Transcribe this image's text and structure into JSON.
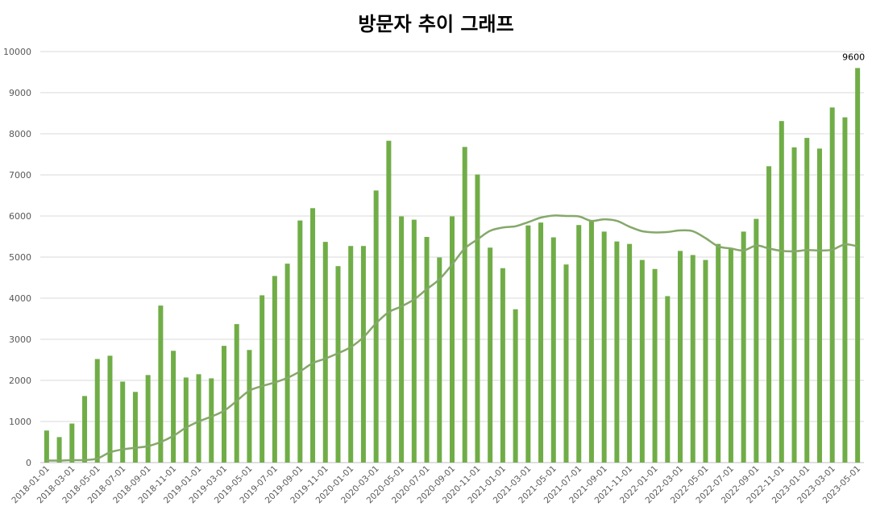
{
  "title": "방문자 추이 그래프",
  "chart_data": {
    "type": "bar",
    "title": "방문자 추이 그래프",
    "xlabel": "",
    "ylabel": "",
    "ylim": [
      0,
      10000
    ],
    "yticks": [
      0,
      1000,
      2000,
      3000,
      4000,
      5000,
      6000,
      7000,
      8000,
      9000,
      10000
    ],
    "grid": true,
    "legend": "none",
    "bar_color": "#70AD47",
    "trend_color": "#85A86A",
    "categories": [
      "2018-01-01",
      "2018-02-01",
      "2018-03-01",
      "2018-04-01",
      "2018-05-01",
      "2018-06-01",
      "2018-07-01",
      "2018-08-01",
      "2018-09-01",
      "2018-10-01",
      "2018-11-01",
      "2018-12-01",
      "2019-01-01",
      "2019-02-01",
      "2019-03-01",
      "2019-04-01",
      "2019-05-01",
      "2019-06-01",
      "2019-07-01",
      "2019-08-01",
      "2019-09-01",
      "2019-10-01",
      "2019-11-01",
      "2019-12-01",
      "2020-01-01",
      "2020-02-01",
      "2020-03-01",
      "2020-04-01",
      "2020-05-01",
      "2020-06-01",
      "2020-07-01",
      "2020-08-01",
      "2020-09-01",
      "2020-10-01",
      "2020-11-01",
      "2020-12-01",
      "2021-01-01",
      "2021-02-01",
      "2021-03-01",
      "2021-04-01",
      "2021-05-01",
      "2021-06-01",
      "2021-07-01",
      "2021-08-01",
      "2021-09-01",
      "2021-10-01",
      "2021-11-01",
      "2021-12-01",
      "2022-01-01",
      "2022-02-01",
      "2022-03-01",
      "2022-04-01",
      "2022-05-01",
      "2022-06-01",
      "2022-07-01",
      "2022-08-01",
      "2022-09-01",
      "2022-10-01",
      "2022-11-01",
      "2022-12-01",
      "2023-01-01",
      "2023-02-01",
      "2023-03-01",
      "2023-04-01",
      "2023-05-01"
    ],
    "xtick_labels": [
      "2018-01-01",
      "2018-03-01",
      "2018-05-01",
      "2018-07-01",
      "2018-09-01",
      "2018-11-01",
      "2019-01-01",
      "2019-03-01",
      "2019-05-01",
      "2019-07-01",
      "2019-09-01",
      "2019-11-01",
      "2020-01-01",
      "2020-03-01",
      "2020-05-01",
      "2020-07-01",
      "2020-09-01",
      "2020-11-01",
      "2021-01-01",
      "2021-03-01",
      "2021-05-01",
      "2021-07-01",
      "2021-09-01",
      "2021-11-01",
      "2022-01-01",
      "2022-03-01",
      "2022-05-01",
      "2022-07-01",
      "2022-09-01",
      "2022-11-01",
      "2023-01-01",
      "2023-03-01",
      "2023-05-01"
    ],
    "values": [
      780,
      620,
      950,
      1620,
      2520,
      2600,
      1970,
      1720,
      2130,
      3820,
      2720,
      2070,
      2150,
      2050,
      2840,
      3370,
      2740,
      4070,
      4540,
      4840,
      5890,
      6190,
      5370,
      4780,
      5270,
      5270,
      6620,
      7830,
      5990,
      5910,
      5490,
      4990,
      5990,
      7680,
      7010,
      5230,
      4730,
      3730,
      5770,
      5840,
      5480,
      4820,
      5780,
      5880,
      5620,
      5380,
      5320,
      4930,
      4710,
      4050,
      5150,
      5050,
      4930,
      5320,
      5210,
      5620,
      5930,
      7210,
      8310,
      7670,
      7900,
      7640,
      8640,
      8400,
      9600
    ],
    "trend": [
      50,
      50,
      60,
      60,
      100,
      250,
      320,
      360,
      400,
      500,
      650,
      850,
      1000,
      1120,
      1260,
      1500,
      1750,
      1860,
      1950,
      2060,
      2220,
      2420,
      2530,
      2660,
      2810,
      3050,
      3390,
      3660,
      3800,
      3970,
      4220,
      4460,
      4820,
      5210,
      5430,
      5640,
      5720,
      5750,
      5850,
      5960,
      6010,
      6000,
      5990,
      5880,
      5920,
      5880,
      5740,
      5630,
      5600,
      5610,
      5650,
      5630,
      5460,
      5260,
      5210,
      5160,
      5280,
      5210,
      5150,
      5140,
      5170,
      5160,
      5180,
      5310,
      5260
    ],
    "annotations": [
      {
        "category": "2023-05-01",
        "text": "9600"
      }
    ]
  }
}
